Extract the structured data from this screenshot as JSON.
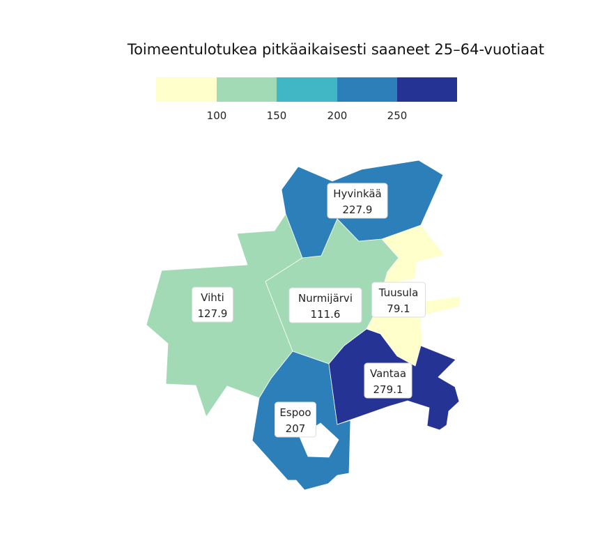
{
  "map": {
    "title": "Toimeentulotukea pitkäaikaisesti saaneet 25–64-vuotiaat",
    "legend": {
      "bins": [
        {
          "color": "#ffffcc"
        },
        {
          "color": "#a1dab4"
        },
        {
          "color": "#41b6c4"
        },
        {
          "color": "#2c7fb8"
        },
        {
          "color": "#253494"
        }
      ],
      "ticks": [
        "100",
        "150",
        "200",
        "250"
      ]
    },
    "regions": [
      {
        "id": "hyvinkaa",
        "name": "Hyvinkää",
        "value": "227.9",
        "color": "#2c7fb8"
      },
      {
        "id": "vihti",
        "name": "Vihti",
        "value": "127.9",
        "color": "#a1dab4"
      },
      {
        "id": "nurmijarvi",
        "name": "Nurmijärvi",
        "value": "111.6",
        "color": "#a1dab4"
      },
      {
        "id": "tuusula",
        "name": "Tuusula",
        "value": "79.1",
        "color": "#ffffcc"
      },
      {
        "id": "vantaa",
        "name": "Vantaa",
        "value": "279.1",
        "color": "#253494"
      },
      {
        "id": "espoo",
        "name": "Espoo",
        "value": "207",
        "color": "#2c7fb8"
      }
    ]
  }
}
